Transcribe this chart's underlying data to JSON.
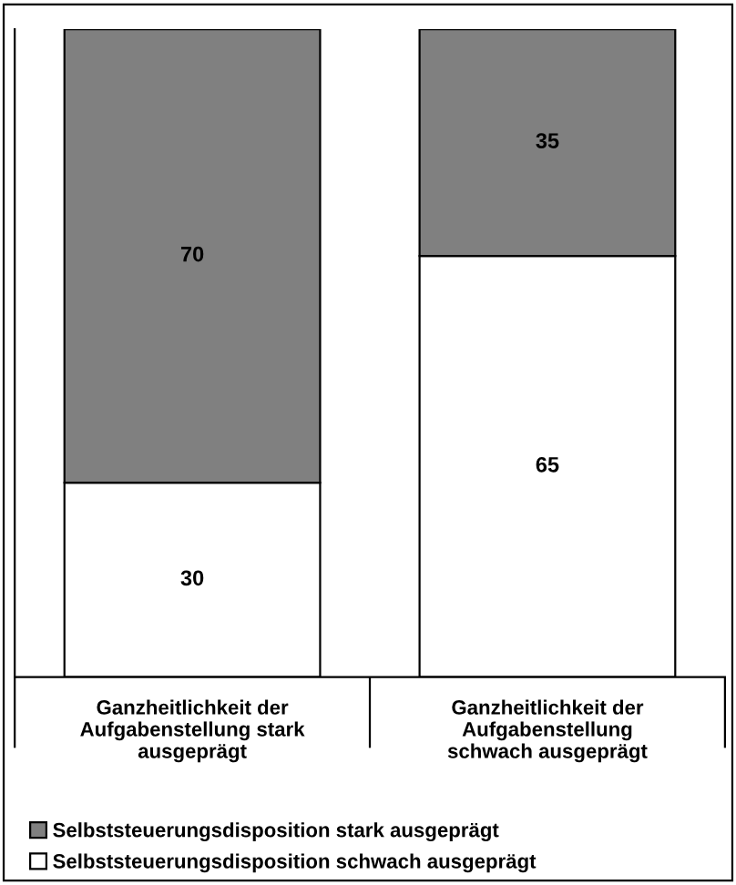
{
  "chart_data": {
    "type": "bar",
    "stacked": true,
    "categories": [
      "Ganzheitlichkeit der\nAufgabenstellung stark\nausgeprägt",
      "Ganzheitlichkeit der\nAufgabenstellung\nschwach ausgeprägt"
    ],
    "series": [
      {
        "name": "Selbststeuerungsdisposition schwach ausgeprägt",
        "color": "#ffffff",
        "values": [
          30,
          65
        ]
      },
      {
        "name": "Selbststeuerungsdisposition stark ausgeprägt",
        "color": "#808080",
        "values": [
          70,
          35
        ]
      }
    ],
    "ylim": [
      0,
      100
    ],
    "data_labels": true,
    "legend": "bottom",
    "grid": false
  }
}
